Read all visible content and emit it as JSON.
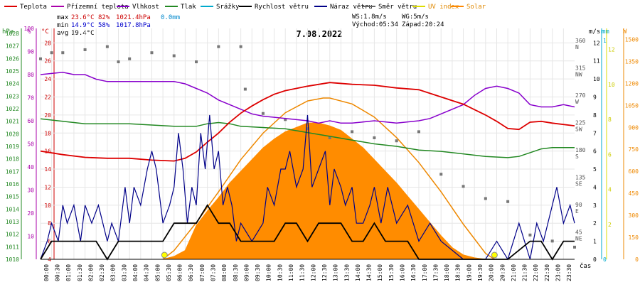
{
  "chart_data": {
    "type": "line",
    "title": "7.08.2022",
    "legend": [
      {
        "name": "Teplota",
        "color": "#dd0000"
      },
      {
        "name": "Přízemní teplota",
        "color": "#aa00aa"
      },
      {
        "name": "Vlhkost",
        "color": "#8800cc"
      },
      {
        "name": "Tlak",
        "color": "#228822"
      },
      {
        "name": "Srážky",
        "color": "#00aacc"
      },
      {
        "name": "Rychlost větru",
        "color": "#000000"
      },
      {
        "name": "Náraz větru",
        "color": "#000088"
      },
      {
        "name": "Směr větru",
        "color": "#666666"
      },
      {
        "name": "UV index",
        "color": "#dddd00"
      },
      {
        "name": "Solar",
        "color": "#ff8800"
      }
    ],
    "stats": {
      "max": {
        "label": "max",
        "temp": "23.6°C",
        "hum": "82%",
        "press": "1021.4hPa",
        "rain": "0.0mm"
      },
      "min": {
        "label": "min",
        "temp": "14.9°C",
        "hum": "58%",
        "press": "1017.8hPa"
      },
      "avg": {
        "label": "avg",
        "temp": "19.4°C"
      }
    },
    "wind_summary": {
      "ws": "WS:1.8m/s",
      "wg": "WG:5m/s",
      "sunrise": "Východ:05:34",
      "sunset": "Západ:20:24"
    },
    "axis_units": {
      "hpa": "hPa",
      "pct": "%",
      "degc": "°C",
      "ms": "m/s",
      "mm": "mm",
      "w": "W",
      "cas": "čas"
    },
    "axes": {
      "hpa": {
        "ticks": [
          "1010",
          "1011",
          "1012",
          "1013",
          "1014",
          "1015",
          "1016",
          "1017",
          "1018",
          "1019",
          "1020",
          "1021",
          "1022",
          "1023",
          "1024",
          "1025",
          "1026",
          "1027",
          "1028"
        ],
        "range": [
          1010,
          1028.4
        ]
      },
      "pct": {
        "ticks": [
          "10",
          "20",
          "30",
          "40",
          "50",
          "60",
          "70",
          "80",
          "90",
          "100"
        ],
        "range": [
          0,
          100
        ]
      },
      "degc": {
        "ticks": [
          "4",
          "6",
          "8",
          "10",
          "12",
          "14",
          "16",
          "18",
          "20",
          "22",
          "24",
          "26",
          "28"
        ],
        "range": [
          4,
          29.6
        ]
      },
      "dir": {
        "ticks": [
          "NE",
          "45",
          "E",
          "90",
          "SE",
          "135",
          "S",
          "180",
          "SW",
          "225",
          "W",
          "270",
          "NW",
          "315",
          "N",
          "360"
        ]
      },
      "ms": {
        "ticks": [
          "0",
          "1",
          "2",
          "3",
          "4",
          "5",
          "6",
          "7",
          "8",
          "9",
          "10",
          "11",
          "12"
        ],
        "range": [
          0,
          12.8
        ]
      },
      "mm": {
        "ticks": [
          "0",
          "1"
        ]
      },
      "w": {
        "ticks": [
          "0",
          "150",
          "300",
          "450",
          "600",
          "750",
          "900",
          "1050",
          "1200",
          "1350",
          "1500"
        ],
        "range": [
          0,
          1575
        ]
      },
      "uv": {
        "ticks": [
          "2",
          "4",
          "6",
          "8",
          "10",
          "12"
        ]
      },
      "x": {
        "ticks": [
          "00:00",
          "00:30",
          "01:00",
          "01:30",
          "02:00",
          "02:30",
          "03:00",
          "03:30",
          "04:00",
          "04:30",
          "05:00",
          "05:30",
          "06:00",
          "06:30",
          "07:00",
          "07:30",
          "08:00",
          "08:30",
          "09:00",
          "09:30",
          "10:00",
          "10:30",
          "11:00",
          "11:30",
          "12:00",
          "12:30",
          "13:00",
          "13:30",
          "14:00",
          "14:30",
          "15:00",
          "15:30",
          "16:00",
          "16:30",
          "17:00",
          "17:30",
          "18:00",
          "18:30",
          "19:00",
          "19:30",
          "20:00",
          "20:30",
          "21:00",
          "21:30",
          "22:00",
          "22:30",
          "23:00",
          "23:30"
        ],
        "range": [
          0,
          24
        ]
      }
    },
    "series": {
      "temperature": [
        [
          0,
          16.0
        ],
        [
          1,
          15.6
        ],
        [
          2,
          15.3
        ],
        [
          3,
          15.2
        ],
        [
          4,
          15.2
        ],
        [
          5,
          15.0
        ],
        [
          6,
          14.9
        ],
        [
          6.5,
          15.2
        ],
        [
          7,
          15.9
        ],
        [
          7.5,
          17.0
        ],
        [
          8,
          18.0
        ],
        [
          8.5,
          19.2
        ],
        [
          9,
          20.2
        ],
        [
          9.5,
          21.0
        ],
        [
          10,
          21.7
        ],
        [
          10.5,
          22.3
        ],
        [
          11,
          22.7
        ],
        [
          12,
          23.2
        ],
        [
          13,
          23.6
        ],
        [
          14,
          23.4
        ],
        [
          15,
          23.3
        ],
        [
          16,
          23.0
        ],
        [
          17,
          22.8
        ],
        [
          17.5,
          22.4
        ],
        [
          18,
          22.0
        ],
        [
          18.5,
          21.6
        ],
        [
          19,
          21.2
        ],
        [
          19.5,
          20.6
        ],
        [
          20,
          20.0
        ],
        [
          20.5,
          19.3
        ],
        [
          21,
          18.5
        ],
        [
          21.5,
          18.4
        ],
        [
          22,
          19.2
        ],
        [
          22.5,
          19.3
        ],
        [
          23,
          19.1
        ],
        [
          24,
          18.8
        ]
      ],
      "humidity": [
        [
          0,
          80
        ],
        [
          1,
          81
        ],
        [
          1.5,
          80
        ],
        [
          2,
          80
        ],
        [
          2.5,
          78
        ],
        [
          3,
          77
        ],
        [
          4,
          77
        ],
        [
          5,
          77
        ],
        [
          6,
          77
        ],
        [
          6.5,
          76
        ],
        [
          7,
          74
        ],
        [
          7.5,
          72
        ],
        [
          8,
          69
        ],
        [
          8.5,
          67
        ],
        [
          9,
          65
        ],
        [
          9.5,
          63
        ],
        [
          10,
          62
        ],
        [
          11,
          61
        ],
        [
          12,
          60
        ],
        [
          12.5,
          59
        ],
        [
          13,
          60
        ],
        [
          13.5,
          59
        ],
        [
          14,
          59
        ],
        [
          15,
          60
        ],
        [
          16,
          59
        ],
        [
          17,
          60
        ],
        [
          17.5,
          61
        ],
        [
          18,
          63
        ],
        [
          18.5,
          65
        ],
        [
          19,
          67
        ],
        [
          19.5,
          71
        ],
        [
          20,
          74
        ],
        [
          20.5,
          75
        ],
        [
          21,
          74
        ],
        [
          21.5,
          72
        ],
        [
          22,
          67
        ],
        [
          22.5,
          66
        ],
        [
          23,
          66
        ],
        [
          23.5,
          67
        ],
        [
          24,
          66
        ]
      ],
      "pressure": [
        [
          0,
          1021.2
        ],
        [
          1,
          1021.0
        ],
        [
          2,
          1020.8
        ],
        [
          3,
          1020.8
        ],
        [
          4,
          1020.8
        ],
        [
          5,
          1020.7
        ],
        [
          6,
          1020.6
        ],
        [
          7,
          1020.6
        ],
        [
          7.5,
          1020.8
        ],
        [
          8,
          1020.9
        ],
        [
          8.5,
          1020.8
        ],
        [
          9,
          1020.6
        ],
        [
          10,
          1020.5
        ],
        [
          11,
          1020.4
        ],
        [
          12,
          1020.1
        ],
        [
          13,
          1019.8
        ],
        [
          14,
          1019.5
        ],
        [
          15,
          1019.2
        ],
        [
          16,
          1019.0
        ],
        [
          17,
          1018.7
        ],
        [
          18,
          1018.6
        ],
        [
          19,
          1018.4
        ],
        [
          20,
          1018.2
        ],
        [
          21,
          1018.1
        ],
        [
          21.5,
          1018.2
        ],
        [
          22,
          1018.5
        ],
        [
          22.5,
          1018.8
        ],
        [
          23,
          1018.9
        ],
        [
          24,
          1018.9
        ]
      ],
      "wind_speed": [
        [
          0,
          0
        ],
        [
          0.5,
          1
        ],
        [
          1,
          1
        ],
        [
          2,
          1
        ],
        [
          2.5,
          1
        ],
        [
          3,
          0
        ],
        [
          3.5,
          1
        ],
        [
          4,
          1
        ],
        [
          4.5,
          1
        ],
        [
          5,
          1
        ],
        [
          5.5,
          1
        ],
        [
          6,
          2
        ],
        [
          6.5,
          2
        ],
        [
          7,
          2
        ],
        [
          7.5,
          3
        ],
        [
          8,
          2
        ],
        [
          8.5,
          2
        ],
        [
          9,
          1
        ],
        [
          9.5,
          1
        ],
        [
          10,
          1
        ],
        [
          10.5,
          1
        ],
        [
          11,
          2
        ],
        [
          11.5,
          2
        ],
        [
          12,
          1
        ],
        [
          12.5,
          2
        ],
        [
          13,
          2
        ],
        [
          13.5,
          2
        ],
        [
          14,
          1
        ],
        [
          14.5,
          1
        ],
        [
          15,
          2
        ],
        [
          15.5,
          1
        ],
        [
          16,
          1
        ],
        [
          16.5,
          1
        ],
        [
          17,
          0
        ],
        [
          17.5,
          0
        ],
        [
          18,
          0
        ],
        [
          19,
          0
        ],
        [
          20,
          0
        ],
        [
          21,
          0
        ],
        [
          22,
          1
        ],
        [
          22.5,
          1
        ],
        [
          23,
          0
        ],
        [
          23.5,
          1
        ],
        [
          24,
          1
        ]
      ],
      "wind_gust": [
        [
          0,
          0
        ],
        [
          0.3,
          1
        ],
        [
          0.5,
          2
        ],
        [
          0.8,
          1
        ],
        [
          1,
          3
        ],
        [
          1.2,
          2
        ],
        [
          1.5,
          3
        ],
        [
          1.8,
          1
        ],
        [
          2,
          3
        ],
        [
          2.3,
          2
        ],
        [
          2.6,
          3
        ],
        [
          3,
          1
        ],
        [
          3.2,
          2
        ],
        [
          3.5,
          1
        ],
        [
          3.8,
          4
        ],
        [
          4,
          2
        ],
        [
          4.2,
          4
        ],
        [
          4.5,
          3
        ],
        [
          4.8,
          5
        ],
        [
          5,
          6
        ],
        [
          5.2,
          5
        ],
        [
          5.5,
          2
        ],
        [
          5.8,
          3
        ],
        [
          6,
          4
        ],
        [
          6.2,
          7
        ],
        [
          6.4,
          5
        ],
        [
          6.6,
          2
        ],
        [
          6.8,
          4
        ],
        [
          7,
          3
        ],
        [
          7.2,
          7
        ],
        [
          7.4,
          5
        ],
        [
          7.6,
          8
        ],
        [
          7.8,
          5
        ],
        [
          8,
          6
        ],
        [
          8.2,
          3
        ],
        [
          8.4,
          4
        ],
        [
          8.6,
          3
        ],
        [
          8.8,
          1
        ],
        [
          9,
          2
        ],
        [
          9.5,
          1
        ],
        [
          10,
          2
        ],
        [
          10.2,
          4
        ],
        [
          10.5,
          3
        ],
        [
          10.8,
          5
        ],
        [
          11,
          5
        ],
        [
          11.2,
          6
        ],
        [
          11.5,
          4
        ],
        [
          11.8,
          5
        ],
        [
          12,
          8
        ],
        [
          12.2,
          4
        ],
        [
          12.5,
          5
        ],
        [
          12.8,
          6
        ],
        [
          13,
          3
        ],
        [
          13.2,
          5
        ],
        [
          13.5,
          4
        ],
        [
          13.7,
          3
        ],
        [
          14,
          4
        ],
        [
          14.2,
          2
        ],
        [
          14.5,
          2
        ],
        [
          14.8,
          3
        ],
        [
          15,
          4
        ],
        [
          15.3,
          2
        ],
        [
          15.6,
          4
        ],
        [
          16,
          2
        ],
        [
          16.5,
          3
        ],
        [
          17,
          1
        ],
        [
          17.5,
          2
        ],
        [
          18,
          1
        ],
        [
          19,
          0
        ],
        [
          20,
          0
        ],
        [
          20.5,
          1
        ],
        [
          21,
          0
        ],
        [
          21.5,
          2
        ],
        [
          22,
          0
        ],
        [
          22.3,
          2
        ],
        [
          22.6,
          1
        ],
        [
          23,
          3
        ],
        [
          23.2,
          4
        ],
        [
          23.5,
          2
        ],
        [
          23.8,
          3
        ],
        [
          24,
          2
        ]
      ],
      "solar": [
        [
          5.5,
          0
        ],
        [
          6,
          20
        ],
        [
          6.5,
          60
        ],
        [
          7,
          230
        ],
        [
          7.5,
          330
        ],
        [
          8,
          420
        ],
        [
          8.5,
          520
        ],
        [
          9,
          600
        ],
        [
          9.5,
          680
        ],
        [
          10,
          760
        ],
        [
          10.5,
          820
        ],
        [
          11,
          870
        ],
        [
          11.5,
          900
        ],
        [
          12,
          930
        ],
        [
          12.5,
          930
        ],
        [
          13,
          910
        ],
        [
          13.5,
          880
        ],
        [
          14,
          820
        ],
        [
          14.5,
          760
        ],
        [
          15,
          680
        ],
        [
          15.5,
          600
        ],
        [
          16,
          520
        ],
        [
          16.5,
          430
        ],
        [
          17,
          340
        ],
        [
          17.5,
          250
        ],
        [
          18,
          160
        ],
        [
          18.5,
          80
        ],
        [
          19,
          30
        ],
        [
          19.5,
          10
        ],
        [
          20,
          0
        ]
      ],
      "solar_theoretical": [
        [
          5.5,
          0
        ],
        [
          6,
          60
        ],
        [
          7,
          250
        ],
        [
          8,
          460
        ],
        [
          9,
          680
        ],
        [
          10,
          860
        ],
        [
          11,
          1000
        ],
        [
          12,
          1080
        ],
        [
          12.7,
          1100
        ],
        [
          13,
          1100
        ],
        [
          14,
          1060
        ],
        [
          15,
          970
        ],
        [
          16,
          830
        ],
        [
          17,
          660
        ],
        [
          18,
          460
        ],
        [
          19,
          240
        ],
        [
          20,
          40
        ],
        [
          20.4,
          0
        ]
      ],
      "wind_direction": [
        [
          0,
          330
        ],
        [
          0.5,
          340
        ],
        [
          1,
          340
        ],
        [
          2,
          345
        ],
        [
          3,
          350
        ],
        [
          3.5,
          325
        ],
        [
          4,
          330
        ],
        [
          5,
          340
        ],
        [
          6,
          335
        ],
        [
          7,
          325
        ],
        [
          8,
          350
        ],
        [
          9,
          350
        ],
        [
          9.2,
          280
        ],
        [
          10,
          240
        ],
        [
          11,
          230
        ],
        [
          12,
          215
        ],
        [
          13,
          200
        ],
        [
          14,
          210
        ],
        [
          15,
          200
        ],
        [
          16,
          195
        ],
        [
          17,
          210
        ],
        [
          18,
          140
        ],
        [
          19,
          120
        ],
        [
          20,
          100
        ],
        [
          21,
          95
        ],
        [
          22,
          40
        ],
        [
          23,
          30
        ],
        [
          24,
          20
        ]
      ]
    }
  }
}
